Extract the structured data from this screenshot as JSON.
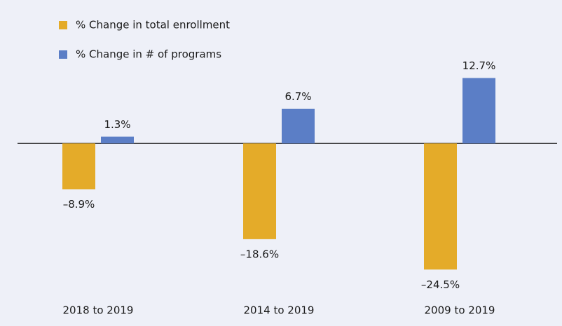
{
  "chart_data": {
    "type": "bar",
    "categories": [
      "2018 to 2019",
      "2014 to 2019",
      "2009 to 2019"
    ],
    "series": [
      {
        "name": "% Change in total enrollment",
        "color": "#e4ab29",
        "values": [
          -8.9,
          -18.6,
          -24.5
        ],
        "value_labels": [
          "–8.9%",
          "–18.6%",
          "–24.5%"
        ]
      },
      {
        "name": "% Change in # of programs",
        "color": "#5b7ec6",
        "values": [
          1.3,
          6.7,
          12.7
        ],
        "value_labels": [
          "1.3%",
          "6.7%",
          "12.7%"
        ]
      }
    ]
  }
}
